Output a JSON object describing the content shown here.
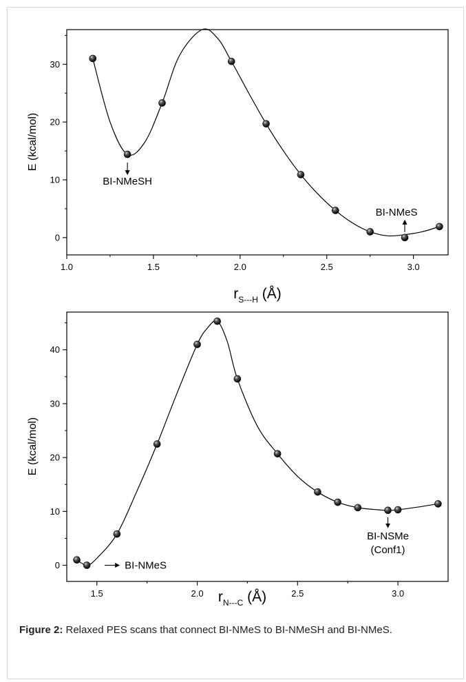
{
  "chart_data": [
    {
      "type": "line",
      "xlabel": "r",
      "xlabel_sub": "S---H",
      "xlabel_unit": " (Å)",
      "ylabel": "E (kcal/mol)",
      "xlim": [
        1.0,
        3.2
      ],
      "ylim": [
        -3,
        36
      ],
      "xticks": [
        "1.0",
        "1.5",
        "2.0",
        "2.5",
        "3.0"
      ],
      "yticks": [
        "0",
        "10",
        "20",
        "30"
      ],
      "series": [
        {
          "x": [
            1.15,
            1.35,
            1.55,
            1.95,
            2.15,
            2.35,
            2.55,
            2.75,
            2.95,
            3.15
          ],
          "y": [
            31.0,
            14.4,
            23.3,
            30.5,
            19.7,
            10.9,
            4.7,
            1.0,
            0.0,
            1.9
          ]
        }
      ],
      "curve": {
        "x": [
          1.15,
          1.25,
          1.35,
          1.45,
          1.55,
          1.65,
          1.78,
          1.87,
          1.95,
          2.05,
          2.15,
          2.25,
          2.35,
          2.45,
          2.55,
          2.65,
          2.75,
          2.85,
          2.95,
          3.05,
          3.15
        ],
        "y": [
          31.0,
          20.0,
          14.4,
          16.5,
          23.3,
          31.5,
          36.0,
          34.5,
          30.5,
          25.0,
          19.7,
          15.0,
          10.9,
          7.5,
          4.7,
          2.5,
          1.0,
          0.3,
          0.5,
          1.0,
          1.9
        ]
      },
      "annotations": [
        {
          "text": "BI-NMeSH",
          "x": 1.35,
          "y": 14.4,
          "arrow": "down"
        },
        {
          "text": "BI-NMeS",
          "x": 2.95,
          "y": 0.0,
          "arrow": "up"
        }
      ]
    },
    {
      "type": "line",
      "xlabel": "r",
      "xlabel_sub": "N---C",
      "xlabel_unit": " (Å)",
      "ylabel": "E (kcal/mol)",
      "xlim": [
        1.35,
        3.25
      ],
      "ylim": [
        -3,
        47
      ],
      "xticks": [
        "1.5",
        "2.0",
        "2.5",
        "3.0"
      ],
      "yticks": [
        "0",
        "10",
        "20",
        "30",
        "40"
      ],
      "series": [
        {
          "x": [
            1.4,
            1.45,
            1.6,
            1.8,
            2.0,
            2.1,
            2.2,
            2.4,
            2.6,
            2.7,
            2.8,
            2.95,
            3.0,
            3.2
          ],
          "y": [
            1.0,
            0.0,
            5.8,
            22.5,
            41.0,
            45.3,
            34.6,
            20.7,
            13.6,
            11.7,
            10.7,
            10.2,
            10.3,
            11.4
          ]
        }
      ],
      "curve": {
        "x": [
          1.4,
          1.45,
          1.5,
          1.6,
          1.7,
          1.8,
          1.9,
          2.0,
          2.05,
          2.1,
          2.15,
          2.2,
          2.3,
          2.4,
          2.5,
          2.6,
          2.7,
          2.8,
          2.9,
          2.95,
          3.0,
          3.1,
          3.2
        ],
        "y": [
          1.0,
          0.0,
          1.3,
          5.8,
          13.8,
          22.5,
          32.0,
          41.0,
          44.0,
          45.3,
          41.5,
          34.6,
          25.8,
          20.7,
          16.5,
          13.6,
          11.7,
          10.7,
          10.3,
          10.2,
          10.3,
          10.8,
          11.4
        ]
      },
      "annotations": [
        {
          "text": "BI-NMeS",
          "x": 1.45,
          "y": 0.0,
          "arrow": "right"
        },
        {
          "text": "BI-NSMe",
          "text2": "(Conf1)",
          "x": 2.95,
          "y": 10.2,
          "arrow": "down"
        }
      ]
    }
  ],
  "caption": {
    "label": "Figure 2:",
    "text": " Relaxed PES scans that connect BI-NMeS to BI-NMeSH and BI-NMeS."
  }
}
